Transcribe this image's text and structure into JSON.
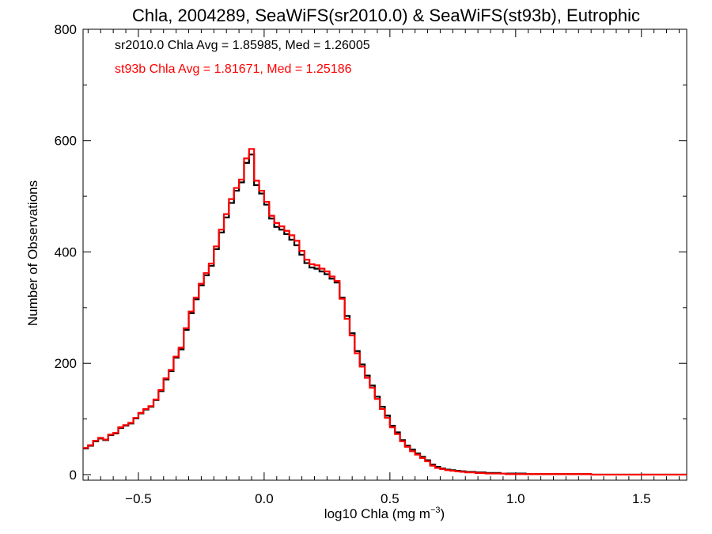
{
  "chart_data": {
    "type": "histogram",
    "title": "Chla, 2004289, SeaWiFS(sr2010.0) & SeaWiFS(st93b), Eutrophic",
    "xlabel_main": "log10 Chla (mg m",
    "xlabel_sup": "−3",
    "xlabel_close": ")",
    "ylabel": "Number of Observations",
    "xlim": [
      -0.72,
      1.68
    ],
    "ylim": [
      -10,
      800
    ],
    "xticks": [
      -0.5,
      0.0,
      0.5,
      1.0,
      1.5
    ],
    "xtick_labels": [
      "−0.5",
      "0.0",
      "0.5",
      "1.0",
      "1.5"
    ],
    "yticks": [
      0,
      200,
      400,
      600,
      800
    ],
    "ytick_labels": [
      "0",
      "200",
      "400",
      "600",
      "800"
    ],
    "grid": false,
    "legend_position": "top-left",
    "series": [
      {
        "name": "sr2010.0",
        "color": "#000000",
        "stat_label": "sr2010.0 Chla Avg = 1.85985, Med = 1.26005",
        "bin_edges": [
          -0.72,
          -0.7,
          -0.68,
          -0.66,
          -0.64,
          -0.62,
          -0.6,
          -0.58,
          -0.56,
          -0.54,
          -0.52,
          -0.5,
          -0.48,
          -0.46,
          -0.44,
          -0.42,
          -0.4,
          -0.38,
          -0.36,
          -0.34,
          -0.32,
          -0.3,
          -0.28,
          -0.26,
          -0.24,
          -0.22,
          -0.2,
          -0.18,
          -0.16,
          -0.14,
          -0.12,
          -0.1,
          -0.08,
          -0.06,
          -0.04,
          -0.02,
          0.0,
          0.02,
          0.04,
          0.06,
          0.08,
          0.1,
          0.12,
          0.14,
          0.16,
          0.18,
          0.2,
          0.22,
          0.24,
          0.26,
          0.28,
          0.3,
          0.32,
          0.34,
          0.36,
          0.38,
          0.4,
          0.42,
          0.44,
          0.46,
          0.48,
          0.5,
          0.52,
          0.54,
          0.56,
          0.58,
          0.6,
          0.62,
          0.64,
          0.66,
          0.68,
          0.7,
          0.72,
          0.74,
          0.76,
          0.78,
          0.8,
          0.82,
          0.84,
          0.86,
          0.88,
          0.9,
          0.92,
          0.94,
          0.96,
          0.98,
          1.0,
          1.02,
          1.04,
          1.06,
          1.08,
          1.1,
          1.12,
          1.14,
          1.16,
          1.18,
          1.2,
          1.22,
          1.24,
          1.26,
          1.28,
          1.3,
          1.32,
          1.34,
          1.36,
          1.38,
          1.4,
          1.42,
          1.44,
          1.46,
          1.48,
          1.5,
          1.52,
          1.54,
          1.56,
          1.58,
          1.6,
          1.62,
          1.64,
          1.66,
          1.68
        ],
        "counts": [
          47,
          52,
          60,
          65,
          62,
          71,
          74,
          84,
          88,
          92,
          101,
          110,
          117,
          122,
          134,
          150,
          171,
          186,
          210,
          225,
          260,
          290,
          315,
          340,
          358,
          375,
          405,
          435,
          462,
          488,
          510,
          525,
          560,
          575,
          520,
          505,
          485,
          460,
          445,
          440,
          432,
          422,
          412,
          395,
          380,
          372,
          370,
          365,
          360,
          352,
          345,
          318,
          285,
          254,
          222,
          198,
          178,
          160,
          140,
          122,
          106,
          88,
          76,
          62,
          52,
          45,
          38,
          32,
          26,
          18,
          14,
          11,
          9,
          8,
          7,
          6,
          5,
          5,
          4,
          4,
          3,
          3,
          3,
          2,
          2,
          2,
          2,
          2,
          1,
          1,
          1,
          1,
          1,
          1,
          1,
          1,
          1,
          1,
          1,
          1,
          1,
          0,
          0,
          0,
          0,
          0,
          0,
          0,
          0,
          0,
          0,
          0,
          0,
          0,
          0,
          0,
          0,
          0,
          0,
          0
        ]
      },
      {
        "name": "st93b",
        "color": "#ff0000",
        "stat_label": "st93b Chla Avg = 1.81671, Med = 1.25186",
        "bin_edges": [
          -0.72,
          -0.7,
          -0.68,
          -0.66,
          -0.64,
          -0.62,
          -0.6,
          -0.58,
          -0.56,
          -0.54,
          -0.52,
          -0.5,
          -0.48,
          -0.46,
          -0.44,
          -0.42,
          -0.4,
          -0.38,
          -0.36,
          -0.34,
          -0.32,
          -0.3,
          -0.28,
          -0.26,
          -0.24,
          -0.22,
          -0.2,
          -0.18,
          -0.16,
          -0.14,
          -0.12,
          -0.1,
          -0.08,
          -0.06,
          -0.04,
          -0.02,
          0.0,
          0.02,
          0.04,
          0.06,
          0.08,
          0.1,
          0.12,
          0.14,
          0.16,
          0.18,
          0.2,
          0.22,
          0.24,
          0.26,
          0.28,
          0.3,
          0.32,
          0.34,
          0.36,
          0.38,
          0.4,
          0.42,
          0.44,
          0.46,
          0.48,
          0.5,
          0.52,
          0.54,
          0.56,
          0.58,
          0.6,
          0.62,
          0.64,
          0.66,
          0.68,
          0.7,
          0.72,
          0.74,
          0.76,
          0.78,
          0.8,
          0.82,
          0.84,
          0.86,
          0.88,
          0.9,
          0.92,
          0.94,
          0.96,
          0.98,
          1.0,
          1.02,
          1.04,
          1.06,
          1.08,
          1.1,
          1.12,
          1.14,
          1.16,
          1.18,
          1.2,
          1.22,
          1.24,
          1.26,
          1.28,
          1.3,
          1.32,
          1.34,
          1.36,
          1.38,
          1.4,
          1.42,
          1.44,
          1.46,
          1.48,
          1.5,
          1.52,
          1.54,
          1.56,
          1.58,
          1.6,
          1.62,
          1.64,
          1.66,
          1.68
        ],
        "counts": [
          48,
          53,
          61,
          66,
          63,
          72,
          75,
          85,
          89,
          93,
          102,
          111,
          118,
          123,
          135,
          152,
          173,
          188,
          212,
          228,
          263,
          293,
          318,
          343,
          362,
          379,
          410,
          440,
          468,
          495,
          515,
          530,
          568,
          585,
          528,
          510,
          490,
          465,
          452,
          446,
          438,
          430,
          420,
          402,
          386,
          378,
          376,
          370,
          365,
          356,
          348,
          316,
          280,
          250,
          218,
          194,
          174,
          156,
          136,
          118,
          102,
          85,
          73,
          60,
          50,
          42,
          36,
          30,
          24,
          16,
          12,
          10,
          8,
          7,
          6,
          5,
          4,
          4,
          3,
          3,
          2,
          2,
          2,
          2,
          1,
          1,
          1,
          1,
          1,
          1,
          1,
          1,
          1,
          1,
          1,
          1,
          1,
          1,
          1,
          1,
          1,
          0,
          0,
          0,
          0,
          0,
          0,
          0,
          0,
          0,
          0,
          0,
          0,
          0,
          0,
          0,
          0,
          0,
          0,
          0
        ]
      }
    ]
  }
}
